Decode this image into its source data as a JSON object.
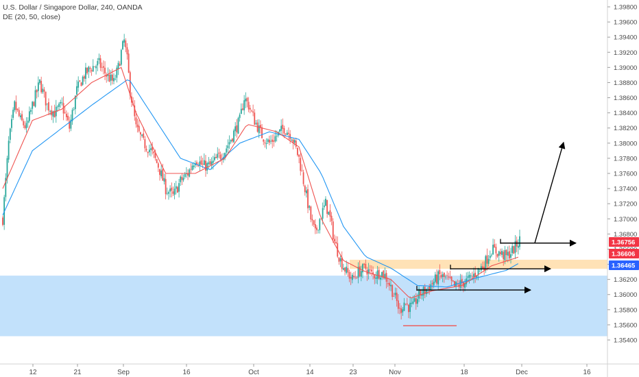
{
  "header": {
    "symbol_title": "U.S. Dollar / Singapore Dollar, 240, OANDA",
    "indicator": "DE (20, 50, close)"
  },
  "colors": {
    "up": "#26a69a",
    "down": "#ef5350",
    "ma_fast": "#ef5350",
    "ma_slow": "#2196f3",
    "demand_zone": "#bbdefb",
    "resistance_zone": "#ffe0b2",
    "badge_red": "#f23645",
    "badge_blue": "#2962ff"
  },
  "chart_data": {
    "type": "candlestick",
    "symbol": "USDSGD",
    "timeframe": "240",
    "ylim": [
      1.354,
      1.399
    ],
    "y_ticks": [
      "1.35400",
      "1.35600",
      "1.35800",
      "1.36000",
      "1.36200",
      "1.36400",
      "1.36600",
      "1.36800",
      "1.37000",
      "1.37200",
      "1.37400",
      "1.37600",
      "1.37800",
      "1.38000",
      "1.38200",
      "1.38400",
      "1.38600",
      "1.38800",
      "1.39000",
      "1.39200",
      "1.39400",
      "1.39600",
      "1.39800"
    ],
    "x_ticks": [
      "12",
      "21",
      "Sep",
      "16",
      "Oct",
      "14",
      "23",
      "Nov",
      "18",
      "Dec",
      "16"
    ],
    "price_path": [
      [
        0,
        1.37
      ],
      [
        4,
        1.38
      ],
      [
        8,
        1.385
      ],
      [
        12,
        1.383
      ],
      [
        16,
        1.382
      ],
      [
        20,
        1.385
      ],
      [
        25,
        1.388
      ],
      [
        30,
        1.385
      ],
      [
        35,
        1.384
      ],
      [
        40,
        1.385
      ],
      [
        45,
        1.382
      ],
      [
        50,
        1.387
      ],
      [
        55,
        1.389
      ],
      [
        60,
        1.39
      ],
      [
        65,
        1.3905
      ],
      [
        70,
        1.389
      ],
      [
        75,
        1.388
      ],
      [
        78,
        1.39
      ],
      [
        80,
        1.392
      ],
      [
        82,
        1.3935
      ],
      [
        84,
        1.391
      ],
      [
        86,
        1.387
      ],
      [
        90,
        1.382
      ],
      [
        95,
        1.38
      ],
      [
        100,
        1.379
      ],
      [
        105,
        1.377
      ],
      [
        110,
        1.374
      ],
      [
        115,
        1.373
      ],
      [
        120,
        1.375
      ],
      [
        125,
        1.376
      ],
      [
        130,
        1.378
      ],
      [
        135,
        1.377
      ],
      [
        140,
        1.377
      ],
      [
        145,
        1.378
      ],
      [
        150,
        1.379
      ],
      [
        155,
        1.381
      ],
      [
        160,
        1.383
      ],
      [
        163,
        1.386
      ],
      [
        166,
        1.385
      ],
      [
        170,
        1.383
      ],
      [
        175,
        1.381
      ],
      [
        180,
        1.38
      ],
      [
        185,
        1.381
      ],
      [
        190,
        1.382
      ],
      [
        195,
        1.381
      ],
      [
        200,
        1.378
      ],
      [
        204,
        1.374
      ],
      [
        208,
        1.37
      ],
      [
        211,
        1.368
      ],
      [
        214,
        1.37
      ],
      [
        218,
        1.372
      ],
      [
        221,
        1.37
      ],
      [
        224,
        1.367
      ],
      [
        228,
        1.3645
      ],
      [
        232,
        1.363
      ],
      [
        236,
        1.362
      ],
      [
        240,
        1.363
      ],
      [
        245,
        1.3635
      ],
      [
        250,
        1.3625
      ],
      [
        255,
        1.363
      ],
      [
        258,
        1.3625
      ],
      [
        262,
        1.361
      ],
      [
        266,
        1.359
      ],
      [
        268,
        1.3578
      ],
      [
        271,
        1.359
      ],
      [
        274,
        1.3584
      ],
      [
        277,
        1.3583
      ],
      [
        279,
        1.3592
      ],
      [
        281,
        1.36
      ],
      [
        285,
        1.3605
      ],
      [
        290,
        1.3615
      ],
      [
        295,
        1.3625
      ],
      [
        300,
        1.362
      ],
      [
        305,
        1.361
      ],
      [
        310,
        1.3615
      ],
      [
        315,
        1.362
      ],
      [
        320,
        1.363
      ],
      [
        325,
        1.364
      ],
      [
        330,
        1.366
      ],
      [
        335,
        1.3655
      ],
      [
        340,
        1.365
      ],
      [
        345,
        1.366
      ],
      [
        349,
        1.3672
      ]
    ],
    "ma_fast": {
      "name": "",
      "points": [
        [
          0,
          1.374
        ],
        [
          20,
          1.383
        ],
        [
          40,
          1.3845
        ],
        [
          60,
          1.388
        ],
        [
          80,
          1.39
        ],
        [
          90,
          1.384
        ],
        [
          110,
          1.376
        ],
        [
          130,
          1.376
        ],
        [
          150,
          1.378
        ],
        [
          165,
          1.3825
        ],
        [
          185,
          1.3815
        ],
        [
          200,
          1.3795
        ],
        [
          215,
          1.37
        ],
        [
          230,
          1.3645
        ],
        [
          245,
          1.363
        ],
        [
          262,
          1.362
        ],
        [
          275,
          1.3595
        ],
        [
          290,
          1.3605
        ],
        [
          310,
          1.3612
        ],
        [
          330,
          1.3638
        ],
        [
          349,
          1.365
        ]
      ]
    },
    "ma_slow": {
      "name": "",
      "points": [
        [
          0,
          1.3705
        ],
        [
          20,
          1.379
        ],
        [
          40,
          1.382
        ],
        [
          60,
          1.385
        ],
        [
          85,
          1.3885
        ],
        [
          100,
          1.384
        ],
        [
          120,
          1.378
        ],
        [
          140,
          1.3765
        ],
        [
          160,
          1.38
        ],
        [
          180,
          1.3815
        ],
        [
          200,
          1.3805
        ],
        [
          215,
          1.376
        ],
        [
          230,
          1.369
        ],
        [
          245,
          1.365
        ],
        [
          262,
          1.3635
        ],
        [
          280,
          1.3612
        ],
        [
          300,
          1.361
        ],
        [
          320,
          1.3622
        ],
        [
          340,
          1.3632
        ],
        [
          349,
          1.3642
        ]
      ]
    },
    "zones": [
      {
        "kind": "demand",
        "from": 1.3545,
        "to": 1.3625
      },
      {
        "kind": "resistance",
        "from": 1.3634,
        "to": 1.3646
      }
    ],
    "support_line": 1.35588,
    "projections": [
      {
        "from": 1.3668,
        "to": 1.3668
      },
      {
        "from": 1.3634,
        "to": 1.3634
      },
      {
        "from": 1.3606,
        "to": 1.3606
      },
      {
        "from": 1.3668,
        "to": 1.3801
      }
    ],
    "price_labels": [
      {
        "value": "1.36756",
        "price": 1.36756,
        "color": "#f23645"
      },
      {
        "value": "1.36606",
        "price": 1.36606,
        "color": "#f23645"
      },
      {
        "value": "1.36465",
        "price": 1.36465,
        "color": "#2962ff"
      }
    ]
  }
}
